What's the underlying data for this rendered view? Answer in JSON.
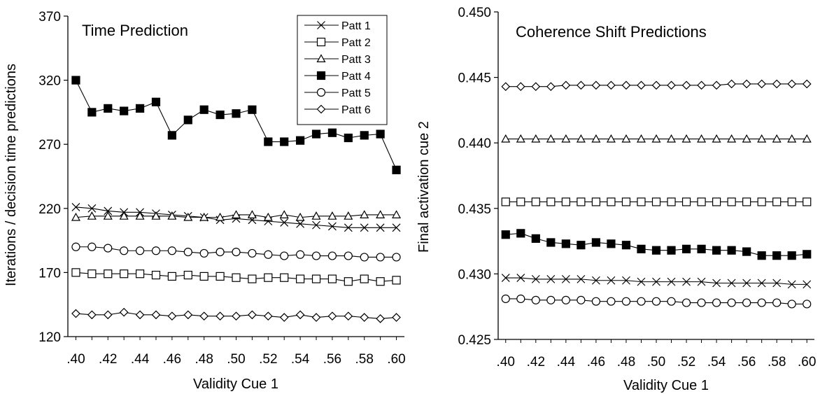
{
  "chart_data": [
    {
      "type": "line",
      "title": "Time Prediction",
      "xlabel": "Validity Cue 1",
      "ylabel": "Iterations / decision time predictions",
      "xlim": [
        0.395,
        0.605
      ],
      "ylim": [
        120,
        370
      ],
      "x": [
        0.4,
        0.41,
        0.42,
        0.43,
        0.44,
        0.45,
        0.46,
        0.47,
        0.48,
        0.49,
        0.5,
        0.51,
        0.52,
        0.53,
        0.54,
        0.55,
        0.56,
        0.57,
        0.58,
        0.59,
        0.6
      ],
      "x_tick_values": [
        0.4,
        0.42,
        0.44,
        0.46,
        0.48,
        0.5,
        0.52,
        0.54,
        0.56,
        0.58,
        0.6
      ],
      "x_tick_labels": [
        ".40",
        ".42",
        ".44",
        ".46",
        ".48",
        ".50",
        ".52",
        ".54",
        ".56",
        ".58",
        ".60"
      ],
      "y_tick_values": [
        120,
        170,
        220,
        270,
        320,
        370
      ],
      "y_tick_labels": [
        "120",
        "170",
        "220",
        "270",
        "320",
        "370"
      ],
      "grid": false,
      "legend": "top-right",
      "series": [
        {
          "name": "Patt 1",
          "marker": "x",
          "values": [
            221,
            220,
            218,
            217,
            217,
            216,
            215,
            214,
            213,
            211,
            212,
            211,
            210,
            209,
            208,
            207,
            206,
            205,
            205,
            205,
            205
          ]
        },
        {
          "name": "Patt 2",
          "marker": "square-open",
          "values": [
            170,
            169,
            169,
            169,
            169,
            168,
            167,
            168,
            167,
            167,
            166,
            165,
            166,
            166,
            165,
            165,
            165,
            163,
            165,
            163,
            164
          ]
        },
        {
          "name": "Patt 3",
          "marker": "triangle-open",
          "values": [
            213,
            214,
            214,
            214,
            214,
            214,
            214,
            213,
            213,
            213,
            215,
            215,
            213,
            215,
            213,
            214,
            214,
            214,
            215,
            215,
            215
          ]
        },
        {
          "name": "Patt 4",
          "marker": "square-filled",
          "values": [
            320,
            295,
            298,
            296,
            298,
            303,
            277,
            289,
            297,
            293,
            294,
            297,
            272,
            272,
            273,
            278,
            279,
            275,
            277,
            278,
            250
          ]
        },
        {
          "name": "Patt 5",
          "marker": "circle-open",
          "values": [
            190,
            190,
            189,
            187,
            187,
            187,
            187,
            186,
            185,
            186,
            186,
            185,
            184,
            183,
            184,
            183,
            183,
            183,
            182,
            182,
            182
          ]
        },
        {
          "name": "Patt 6",
          "marker": "diamond-open",
          "values": [
            138,
            137,
            137,
            139,
            137,
            137,
            136,
            137,
            136,
            136,
            136,
            137,
            136,
            135,
            137,
            135,
            136,
            136,
            135,
            134,
            135
          ]
        }
      ]
    },
    {
      "type": "line",
      "title": "Coherence Shift Predictions",
      "xlabel": "Validity Cue 1",
      "ylabel": "Final activation cue 2",
      "xlim": [
        0.395,
        0.605
      ],
      "ylim": [
        0.425,
        0.45
      ],
      "x": [
        0.4,
        0.41,
        0.42,
        0.43,
        0.44,
        0.45,
        0.46,
        0.47,
        0.48,
        0.49,
        0.5,
        0.51,
        0.52,
        0.53,
        0.54,
        0.55,
        0.56,
        0.57,
        0.58,
        0.59,
        0.6
      ],
      "x_tick_values": [
        0.4,
        0.42,
        0.44,
        0.46,
        0.48,
        0.5,
        0.52,
        0.54,
        0.56,
        0.58,
        0.6
      ],
      "x_tick_labels": [
        ".40",
        ".42",
        ".44",
        ".46",
        ".48",
        ".50",
        ".52",
        ".54",
        ".56",
        ".58",
        ".60"
      ],
      "y_tick_values": [
        0.425,
        0.43,
        0.435,
        0.44,
        0.445,
        0.45
      ],
      "y_tick_labels": [
        "0.425",
        "0.430",
        "0.435",
        "0.440",
        "0.445",
        "0.450"
      ],
      "grid": false,
      "series": [
        {
          "name": "Patt 6",
          "marker": "diamond-open",
          "values": [
            0.4443,
            0.4443,
            0.4443,
            0.4443,
            0.4444,
            0.4444,
            0.4444,
            0.4444,
            0.4444,
            0.4444,
            0.4444,
            0.4444,
            0.4444,
            0.4444,
            0.4444,
            0.4445,
            0.4445,
            0.4445,
            0.4445,
            0.4445,
            0.4445
          ]
        },
        {
          "name": "Patt 3",
          "marker": "triangle-open",
          "values": [
            0.4403,
            0.4403,
            0.4403,
            0.4403,
            0.4403,
            0.4403,
            0.4403,
            0.4403,
            0.4403,
            0.4403,
            0.4403,
            0.4403,
            0.4403,
            0.4403,
            0.4403,
            0.4403,
            0.4403,
            0.4403,
            0.4403,
            0.4403,
            0.4403
          ]
        },
        {
          "name": "Patt 2",
          "marker": "square-open",
          "values": [
            0.4355,
            0.4355,
            0.4355,
            0.4355,
            0.4355,
            0.4355,
            0.4355,
            0.4355,
            0.4355,
            0.4355,
            0.4355,
            0.4355,
            0.4355,
            0.4355,
            0.4355,
            0.4355,
            0.4355,
            0.4355,
            0.4355,
            0.4355,
            0.4355
          ]
        },
        {
          "name": "Patt 4",
          "marker": "square-filled",
          "values": [
            0.433,
            0.4331,
            0.4327,
            0.4324,
            0.4323,
            0.4322,
            0.4324,
            0.4323,
            0.4322,
            0.4319,
            0.4318,
            0.4318,
            0.4319,
            0.4319,
            0.4318,
            0.4318,
            0.4317,
            0.4314,
            0.4314,
            0.4314,
            0.4315
          ]
        },
        {
          "name": "Patt 1",
          "marker": "x",
          "values": [
            0.4297,
            0.4297,
            0.4296,
            0.4296,
            0.4296,
            0.4296,
            0.4295,
            0.4295,
            0.4295,
            0.4294,
            0.4294,
            0.4294,
            0.4294,
            0.4294,
            0.4293,
            0.4293,
            0.4293,
            0.4293,
            0.4293,
            0.4292,
            0.4292
          ]
        },
        {
          "name": "Patt 5",
          "marker": "circle-open",
          "values": [
            0.4281,
            0.4281,
            0.428,
            0.428,
            0.428,
            0.428,
            0.4279,
            0.4279,
            0.4279,
            0.4279,
            0.4279,
            0.4279,
            0.4278,
            0.4278,
            0.4278,
            0.4278,
            0.4278,
            0.4278,
            0.4278,
            0.4277,
            0.4277
          ]
        }
      ]
    }
  ]
}
